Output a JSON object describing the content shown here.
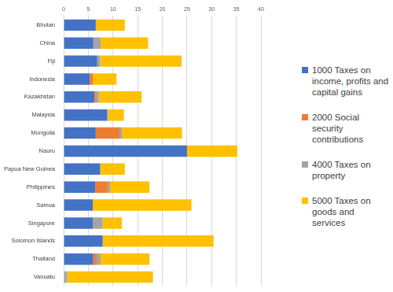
{
  "chart_data": {
    "type": "bar",
    "orientation": "horizontal",
    "stacked": true,
    "grid": true,
    "legend": "right",
    "categories": [
      "Bhutan",
      "China",
      "Fiji",
      "Indonesia",
      "Kazakhstan",
      "Malaysia",
      "Mongolia",
      "Nauru",
      "Papua New Guinea",
      "Philippines",
      "Samoa",
      "Singapore",
      "Solomon Islands",
      "Thailand",
      "Vanuatu"
    ],
    "series": [
      {
        "name": "1000 Taxes on income, profits and capital gains",
        "color": "#4472c4",
        "values": [
          6.5,
          6.0,
          6.8,
          5.3,
          6.2,
          8.8,
          6.5,
          25.0,
          7.4,
          6.4,
          5.9,
          5.9,
          7.9,
          6.0,
          0
        ]
      },
      {
        "name": "2000 Social security contributions",
        "color": "#ed7d31",
        "values": [
          0,
          0,
          0,
          0.6,
          0.3,
          0,
          4.8,
          0,
          0,
          2.5,
          0,
          0,
          0,
          0.7,
          0
        ]
      },
      {
        "name": "4000 Taxes on property",
        "color": "#a5a5a5",
        "values": [
          0,
          1.5,
          0.6,
          0,
          0.6,
          0.2,
          0.5,
          0,
          0,
          0.5,
          0,
          2.0,
          0,
          0.8,
          0.7
        ]
      },
      {
        "name": "5000 Taxes on goods and services",
        "color": "#ffc000",
        "values": [
          5.9,
          9.6,
          16.5,
          4.8,
          8.7,
          3.2,
          12.2,
          10.2,
          5.0,
          8.0,
          20.0,
          3.9,
          22.5,
          9.9,
          17.4
        ]
      }
    ],
    "xlim": [
      0,
      40
    ],
    "xticks": [
      0,
      5,
      10,
      15,
      20,
      25,
      30,
      35,
      40
    ]
  }
}
